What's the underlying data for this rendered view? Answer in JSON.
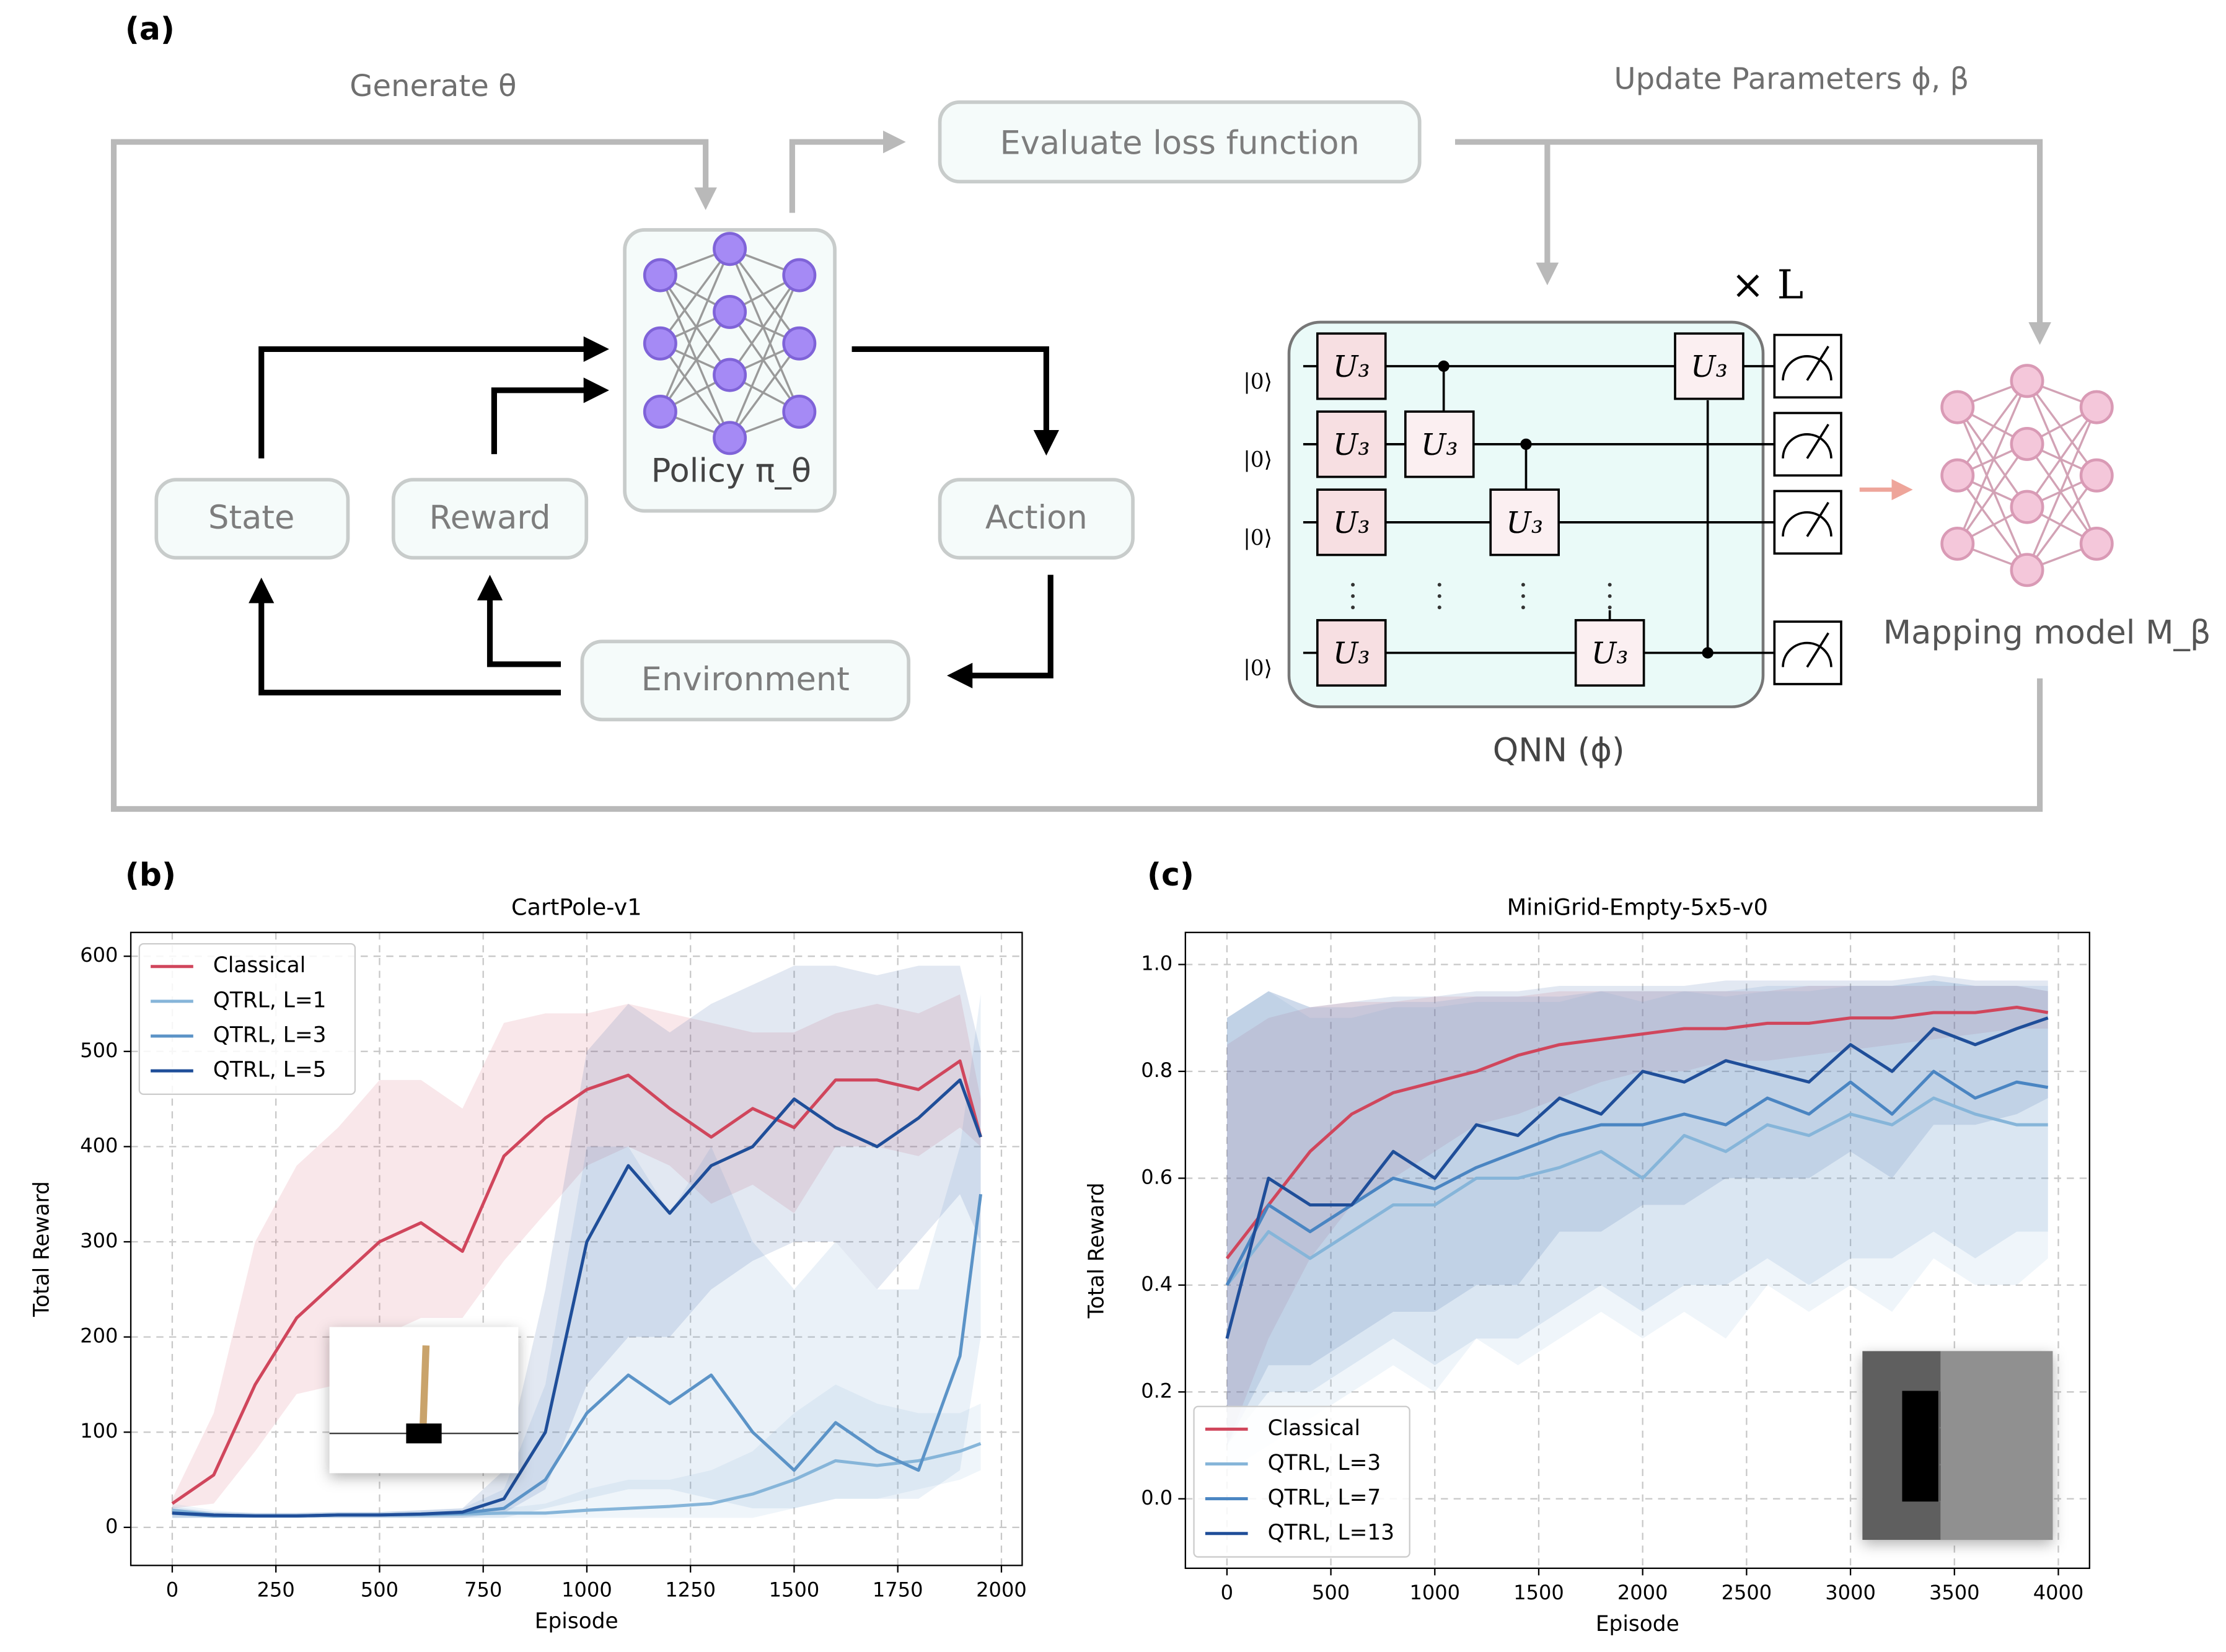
{
  "diagram": {
    "panel_label": "(a)",
    "generate": "Generate θ",
    "update": "Update Parameters ϕ, β",
    "evaluate": "Evaluate loss function",
    "policy": "Policy π_θ",
    "state": "State",
    "reward": "Reward",
    "action": "Action",
    "environment": "Environment",
    "repeat": "× L",
    "kets": [
      "|0⟩",
      "|0⟩",
      "|0⟩",
      "|0⟩"
    ],
    "gates": [
      "U₃",
      "U₃",
      "U₃",
      "U₃",
      "U₃",
      "U₃",
      "U₃",
      "U₃"
    ],
    "qnn": "QNN (ϕ)",
    "mapping": "Mapping model  M_β"
  },
  "chart_data": [
    {
      "type": "line",
      "panel_label": "(b)",
      "title": "CartPole-v1",
      "xlabel": "Episode",
      "ylabel": "Total Reward",
      "grid": true,
      "legend": "upper left",
      "x": [
        0,
        100,
        200,
        300,
        400,
        500,
        600,
        700,
        800,
        900,
        1000,
        1100,
        1200,
        1300,
        1400,
        1500,
        1600,
        1700,
        1800,
        1900,
        1950
      ],
      "xlim": [
        -100,
        2050
      ],
      "xticks": [
        0,
        250,
        500,
        750,
        1000,
        1250,
        1500,
        1750,
        2000
      ],
      "ylim": [
        -40,
        625
      ],
      "yticks": [
        0,
        100,
        200,
        300,
        400,
        500,
        600
      ],
      "series": [
        {
          "name": "Classical",
          "color": "#d0465c",
          "values": [
            25,
            55,
            150,
            220,
            260,
            300,
            320,
            290,
            390,
            430,
            460,
            475,
            440,
            410,
            440,
            420,
            470,
            470,
            460,
            490,
            410
          ],
          "lower": [
            20,
            25,
            80,
            140,
            150,
            200,
            220,
            220,
            280,
            330,
            380,
            400,
            380,
            340,
            360,
            330,
            400,
            400,
            390,
            420,
            400
          ],
          "upper": [
            30,
            120,
            300,
            380,
            420,
            470,
            470,
            440,
            530,
            540,
            540,
            550,
            540,
            530,
            520,
            520,
            540,
            550,
            540,
            560,
            450
          ]
        },
        {
          "name": "QTRL, L=1",
          "color": "#86b5d9",
          "values": [
            18,
            13,
            12,
            12,
            13,
            13,
            13,
            14,
            15,
            15,
            18,
            20,
            22,
            25,
            35,
            50,
            70,
            65,
            70,
            80,
            88
          ],
          "lower": [
            10,
            10,
            10,
            10,
            10,
            10,
            10,
            10,
            10,
            10,
            10,
            10,
            10,
            10,
            10,
            20,
            30,
            30,
            40,
            50,
            60
          ],
          "upper": [
            25,
            18,
            15,
            15,
            16,
            16,
            16,
            18,
            20,
            25,
            40,
            50,
            50,
            60,
            80,
            120,
            150,
            130,
            120,
            120,
            130
          ]
        },
        {
          "name": "QTRL, L=3",
          "color": "#5b93c7",
          "values": [
            15,
            12,
            12,
            12,
            13,
            13,
            14,
            15,
            20,
            50,
            120,
            160,
            130,
            160,
            100,
            60,
            110,
            80,
            60,
            180,
            350
          ],
          "lower": [
            10,
            10,
            10,
            10,
            10,
            10,
            10,
            10,
            10,
            20,
            30,
            40,
            40,
            30,
            20,
            20,
            30,
            30,
            30,
            60,
            200
          ],
          "upper": [
            22,
            16,
            15,
            15,
            16,
            16,
            18,
            20,
            40,
            150,
            400,
            400,
            330,
            400,
            300,
            250,
            300,
            250,
            250,
            400,
            560
          ]
        },
        {
          "name": "QTRL, L=5",
          "color": "#1f4e99",
          "values": [
            15,
            13,
            12,
            12,
            13,
            13,
            14,
            16,
            30,
            100,
            300,
            380,
            330,
            380,
            400,
            450,
            420,
            400,
            430,
            470,
            410
          ],
          "lower": [
            10,
            10,
            10,
            10,
            10,
            10,
            10,
            10,
            15,
            40,
            150,
            200,
            200,
            250,
            280,
            300,
            300,
            250,
            300,
            350,
            300
          ],
          "upper": [
            20,
            16,
            15,
            15,
            16,
            16,
            18,
            20,
            60,
            250,
            500,
            550,
            520,
            550,
            570,
            590,
            590,
            580,
            590,
            590,
            500
          ]
        }
      ]
    },
    {
      "type": "line",
      "panel_label": "(c)",
      "title": "MiniGrid-Empty-5x5-v0",
      "xlabel": "Episode",
      "ylabel": "Total Reward",
      "grid": true,
      "legend": "lower left",
      "x": [
        0,
        200,
        400,
        600,
        800,
        1000,
        1200,
        1400,
        1600,
        1800,
        2000,
        2200,
        2400,
        2600,
        2800,
        3000,
        3200,
        3400,
        3600,
        3800,
        3950
      ],
      "xlim": [
        -200,
        4150
      ],
      "xticks": [
        0,
        500,
        1000,
        1500,
        2000,
        2500,
        3000,
        3500,
        4000
      ],
      "ylim": [
        -0.13,
        1.06
      ],
      "yticks": [
        {
          "value": 0,
          "label": "0.0"
        },
        0.2,
        0.4,
        0.6,
        0.8,
        {
          "value": 1,
          "label": "1.0"
        }
      ],
      "series": [
        {
          "name": "Classical",
          "color": "#d0465c",
          "values": [
            0.45,
            0.55,
            0.65,
            0.72,
            0.76,
            0.78,
            0.8,
            0.83,
            0.85,
            0.86,
            0.87,
            0.88,
            0.88,
            0.89,
            0.89,
            0.9,
            0.9,
            0.91,
            0.91,
            0.92,
            0.91
          ],
          "lower": [
            0.1,
            0.3,
            0.45,
            0.55,
            0.6,
            0.65,
            0.7,
            0.72,
            0.75,
            0.78,
            0.8,
            0.8,
            0.82,
            0.82,
            0.83,
            0.84,
            0.85,
            0.86,
            0.87,
            0.88,
            0.88
          ],
          "upper": [
            0.85,
            0.9,
            0.92,
            0.93,
            0.93,
            0.94,
            0.94,
            0.94,
            0.95,
            0.95,
            0.95,
            0.95,
            0.95,
            0.95,
            0.96,
            0.96,
            0.96,
            0.96,
            0.96,
            0.96,
            0.95
          ]
        },
        {
          "name": "QTRL, L=3",
          "color": "#86b5d9",
          "values": [
            0.4,
            0.5,
            0.45,
            0.5,
            0.55,
            0.55,
            0.6,
            0.6,
            0.62,
            0.65,
            0.6,
            0.68,
            0.65,
            0.7,
            0.68,
            0.72,
            0.7,
            0.75,
            0.72,
            0.7,
            0.7
          ],
          "lower": [
            0.05,
            0.1,
            0.15,
            0.2,
            0.25,
            0.2,
            0.3,
            0.25,
            0.3,
            0.35,
            0.3,
            0.35,
            0.3,
            0.4,
            0.35,
            0.4,
            0.35,
            0.45,
            0.4,
            0.4,
            0.45
          ],
          "upper": [
            0.9,
            0.95,
            0.9,
            0.9,
            0.92,
            0.92,
            0.93,
            0.93,
            0.93,
            0.95,
            0.93,
            0.95,
            0.94,
            0.95,
            0.95,
            0.96,
            0.96,
            0.97,
            0.96,
            0.96,
            0.95
          ]
        },
        {
          "name": "QTRL, L=7",
          "color": "#4a85c2",
          "values": [
            0.4,
            0.55,
            0.5,
            0.55,
            0.6,
            0.58,
            0.62,
            0.65,
            0.68,
            0.7,
            0.7,
            0.72,
            0.7,
            0.75,
            0.72,
            0.78,
            0.72,
            0.8,
            0.75,
            0.78,
            0.77
          ],
          "lower": [
            0.1,
            0.2,
            0.2,
            0.25,
            0.3,
            0.25,
            0.3,
            0.3,
            0.35,
            0.4,
            0.35,
            0.4,
            0.4,
            0.45,
            0.4,
            0.45,
            0.45,
            0.5,
            0.45,
            0.5,
            0.5
          ],
          "upper": [
            0.9,
            0.95,
            0.92,
            0.92,
            0.93,
            0.93,
            0.94,
            0.94,
            0.94,
            0.95,
            0.95,
            0.95,
            0.95,
            0.96,
            0.96,
            0.96,
            0.96,
            0.97,
            0.96,
            0.96,
            0.96
          ]
        },
        {
          "name": "QTRL, L=13",
          "color": "#1f4e99",
          "values": [
            0.3,
            0.6,
            0.55,
            0.55,
            0.65,
            0.6,
            0.7,
            0.68,
            0.75,
            0.72,
            0.8,
            0.78,
            0.82,
            0.8,
            0.78,
            0.85,
            0.8,
            0.88,
            0.85,
            0.88,
            0.9
          ],
          "lower": [
            0.1,
            0.25,
            0.25,
            0.3,
            0.35,
            0.35,
            0.4,
            0.4,
            0.5,
            0.5,
            0.55,
            0.55,
            0.6,
            0.6,
            0.6,
            0.65,
            0.6,
            0.7,
            0.7,
            0.72,
            0.75
          ],
          "upper": [
            0.9,
            0.95,
            0.92,
            0.93,
            0.94,
            0.94,
            0.95,
            0.95,
            0.96,
            0.96,
            0.96,
            0.96,
            0.97,
            0.97,
            0.97,
            0.97,
            0.97,
            0.98,
            0.97,
            0.97,
            0.97
          ]
        }
      ]
    }
  ]
}
